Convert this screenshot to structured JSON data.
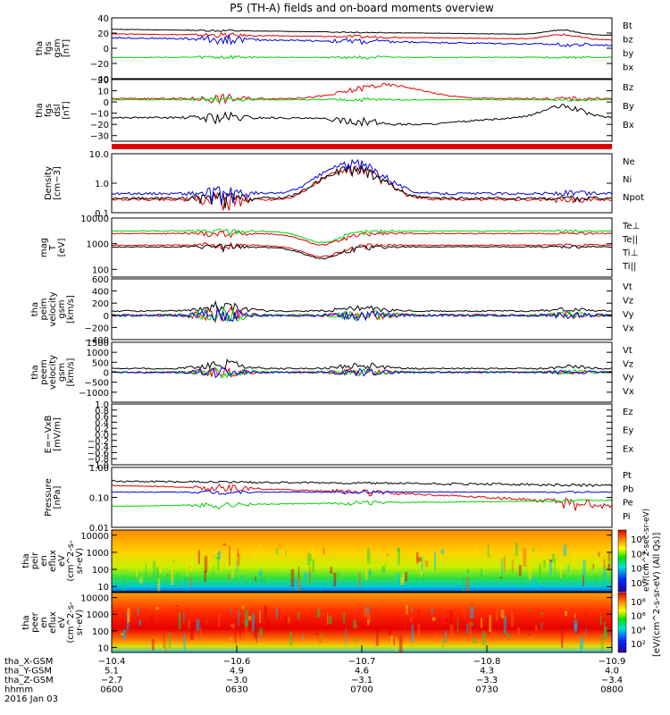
{
  "title": "P5 (TH-A) fields and on-board moments overview",
  "colors": {
    "black": "#000000",
    "red": "#e00000",
    "green": "#00d000",
    "blue": "#0000e0"
  },
  "chart_data": [
    {
      "type": "line",
      "id": "fgs_gsm",
      "ylabel": [
        "tha",
        "fgs",
        "gsm",
        "[nT]"
      ],
      "ylim": [
        -40,
        40
      ],
      "yticks": [
        "40",
        "20",
        "0",
        "−20",
        "−40"
      ],
      "tick_values": [
        40,
        20,
        0,
        -20,
        -40
      ],
      "scale": "linear",
      "series": [
        {
          "name": "Bt",
          "color": "#000000"
        },
        {
          "name": "bz",
          "color": "#e00000"
        },
        {
          "name": "by",
          "color": "#00d000"
        },
        {
          "name": "bx",
          "color": "#0000e0"
        }
      ]
    },
    {
      "type": "line",
      "id": "fgs_dsl",
      "ylabel": [
        "tha",
        "fgs",
        "dsl",
        "[nT]"
      ],
      "ylim": [
        -35,
        20
      ],
      "yticks": [
        "20",
        "10",
        "0",
        "−10",
        "−20",
        "−30"
      ],
      "tick_values": [
        20,
        10,
        0,
        -10,
        -20,
        -30
      ],
      "scale": "linear",
      "series": [
        {
          "name": "Bz",
          "color": "#e00000"
        },
        {
          "name": "By",
          "color": "#00d000"
        },
        {
          "name": "Bx",
          "color": "#000000"
        }
      ]
    },
    {
      "type": "line",
      "id": "density",
      "ylabel": [
        "Density",
        "[cm−3]"
      ],
      "ylim": [
        0.1,
        10
      ],
      "yticks": [
        "10.0",
        "1.0",
        "0.1"
      ],
      "tick_values": [
        10,
        1,
        0.1
      ],
      "scale": "log",
      "series": [
        {
          "name": "Ne",
          "color": "#e00000"
        },
        {
          "name": "Ni",
          "color": "#000000"
        },
        {
          "name": "Npot",
          "color": "#0000e0"
        }
      ]
    },
    {
      "type": "line",
      "id": "temperature",
      "ylabel": [
        "mag",
        "T",
        "[eV]"
      ],
      "ylim": [
        50,
        10000
      ],
      "yticks": [
        "10000",
        "1000",
        "100"
      ],
      "tick_values": [
        10000,
        1000,
        100
      ],
      "scale": "log",
      "series": [
        {
          "name": "Te⊥",
          "color": "#e00000"
        },
        {
          "name": "Te||",
          "color": "#000000"
        },
        {
          "name": "Ti⊥",
          "color": "#e00000"
        },
        {
          "name": "Ti||",
          "color": "#00d000"
        }
      ]
    },
    {
      "type": "line",
      "id": "peim_velocity",
      "ylabel": [
        "tha",
        "peim",
        "velocity",
        "gsm",
        "[km/s]"
      ],
      "ylim": [
        -400,
        600
      ],
      "yticks": [
        "600",
        "400",
        "200",
        "0",
        "−200",
        "−400"
      ],
      "tick_values": [
        600,
        400,
        200,
        0,
        -200,
        -400
      ],
      "scale": "linear",
      "series": [
        {
          "name": "Vt",
          "color": "#000000"
        },
        {
          "name": "Vz",
          "color": "#e00000"
        },
        {
          "name": "Vy",
          "color": "#00d000"
        },
        {
          "name": "Vx",
          "color": "#0000e0"
        }
      ]
    },
    {
      "type": "line",
      "id": "peem_velocity",
      "ylabel": [
        "tha",
        "peem",
        "velocity",
        "gsm",
        "[km/s]"
      ],
      "ylim": [
        -1500,
        1500
      ],
      "yticks": [
        "1500",
        "1000",
        "500",
        "0",
        "−500",
        "−1000"
      ],
      "tick_values": [
        1500,
        1000,
        500,
        0,
        -500,
        -1000
      ],
      "scale": "linear",
      "series": [
        {
          "name": "Vt",
          "color": "#000000"
        },
        {
          "name": "Vz",
          "color": "#e00000"
        },
        {
          "name": "Vy",
          "color": "#00d000"
        },
        {
          "name": "Vx",
          "color": "#0000e0"
        }
      ]
    },
    {
      "type": "line",
      "id": "efield",
      "ylabel": [
        "E=−VxB",
        "[mV/m]"
      ],
      "ylim": [
        -1,
        1
      ],
      "yticks": [
        "1.0",
        "0.8",
        "0.6",
        "0.4",
        "0.2",
        "0.0",
        "−0.2",
        "−0.4",
        "−0.6",
        "−0.8",
        "−1.0"
      ],
      "tick_values": [
        1,
        0.8,
        0.6,
        0.4,
        0.2,
        0,
        -0.2,
        -0.4,
        -0.6,
        -0.8,
        -1
      ],
      "scale": "linear",
      "series": [
        {
          "name": "Ez",
          "color": "#e00000"
        },
        {
          "name": "Ey",
          "color": "#00d000"
        },
        {
          "name": "Ex",
          "color": "#0000e0"
        }
      ]
    },
    {
      "type": "line",
      "id": "pressure",
      "ylabel": [
        "Pressure",
        "[nPa]"
      ],
      "ylim": [
        0.01,
        1
      ],
      "yticks": [
        "1.00",
        "0.10",
        "0.01"
      ],
      "tick_values": [
        1,
        0.1,
        0.01
      ],
      "scale": "log",
      "series": [
        {
          "name": "Pt",
          "color": "#000000"
        },
        {
          "name": "Pb",
          "color": "#e00000"
        },
        {
          "name": "Pe",
          "color": "#00d000"
        },
        {
          "name": "Pi",
          "color": "#0000e0"
        }
      ]
    },
    {
      "type": "heatmap",
      "id": "peir_eflux",
      "ylabel": [
        "tha",
        "peir",
        "en",
        "eflux",
        "eV",
        "(cm^2-s-",
        "sr-eV)"
      ],
      "ylim": [
        5,
        20000
      ],
      "yticks": [
        "10000",
        "1000",
        "100",
        "10"
      ],
      "tick_values": [
        10000,
        1000,
        100,
        10
      ],
      "scale": "log",
      "colorbar_ticks": [
        "10⁶",
        "10⁴",
        "10²",
        "10⁰"
      ],
      "colorbar_label": "eV/(cm^2-sec-sr-eV)"
    },
    {
      "type": "heatmap",
      "id": "peer_eflux",
      "ylabel": [
        "tha",
        "peer",
        "en",
        "eflux",
        "eV",
        "(cm^2-s-",
        "sr-eV)"
      ],
      "ylim": [
        5,
        20000
      ],
      "yticks": [
        "10000",
        "1000",
        "100",
        "10"
      ],
      "tick_values": [
        10000,
        1000,
        100,
        10
      ],
      "scale": "log",
      "colorbar_ticks": [
        "10⁸",
        "10⁶",
        "10⁴",
        "10²"
      ],
      "colorbar_label": "[eV/(cm^2-s-sr-eV) (All Qs)]"
    }
  ],
  "xaxis": {
    "top_ticks": [
      "−10.4",
      "−10.6",
      "−10.7",
      "−10.8",
      "−10.9"
    ],
    "row_labels": [
      "tha_X-GSM",
      "tha_Y-GSM",
      "tha_Z-GSM",
      "hhmm",
      "2016 Jan 03"
    ],
    "columns": [
      {
        "x": "−10.4",
        "y": "5.1",
        "z": "−2.7",
        "hhmm": "0600"
      },
      {
        "x": "",
        "y": "4.9",
        "z": "−3.0",
        "hhmm": "0630"
      },
      {
        "x": "",
        "y": "4.6",
        "z": "−3.1",
        "hhmm": "0700"
      },
      {
        "x": "",
        "y": "4.3",
        "z": "−3.3",
        "hhmm": "0730"
      },
      {
        "x": "",
        "y": "4.0",
        "z": "−3.4",
        "hhmm": "0800"
      }
    ]
  }
}
